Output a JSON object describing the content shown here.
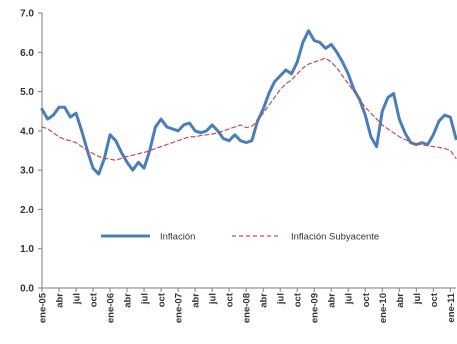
{
  "chart_data": {
    "type": "line",
    "title": "",
    "xlabel": "",
    "ylabel": "",
    "ylim": [
      0,
      7
    ],
    "yticks": [
      "0.0",
      "1.0",
      "2.0",
      "3.0",
      "4.0",
      "5.0",
      "6.0",
      "7.0"
    ],
    "grid": false,
    "legend_position": "center-left",
    "x_tick_labels": [
      "ene-05",
      "abr",
      "jul",
      "oct",
      "ene-06",
      "abr",
      "jul",
      "oct",
      "ene-07",
      "abr",
      "jul",
      "oct",
      "ene-08",
      "abr",
      "jul",
      "oct",
      "ene-09",
      "abr",
      "jul",
      "oct",
      "ene-10",
      "abr",
      "jul",
      "oct",
      "ene-11"
    ],
    "x_tick_months": [
      0,
      3,
      6,
      9,
      12,
      15,
      18,
      21,
      24,
      27,
      30,
      33,
      36,
      39,
      42,
      45,
      48,
      51,
      54,
      57,
      60,
      63,
      66,
      69,
      72
    ],
    "x": [
      0,
      1,
      2,
      3,
      4,
      5,
      6,
      7,
      8,
      9,
      10,
      11,
      12,
      13,
      14,
      15,
      16,
      17,
      18,
      19,
      20,
      21,
      22,
      23,
      24,
      25,
      26,
      27,
      28,
      29,
      30,
      31,
      32,
      33,
      34,
      35,
      36,
      37,
      38,
      39,
      40,
      41,
      42,
      43,
      44,
      45,
      46,
      47,
      48,
      49,
      50,
      51,
      52,
      53,
      54,
      55,
      56,
      57,
      58,
      59,
      60,
      61,
      62,
      63,
      64,
      65,
      66,
      67,
      68,
      69,
      70,
      71,
      72,
      73
    ],
    "series": [
      {
        "name": "Inflación",
        "color": "#4a7ebb",
        "style": "solid",
        "values": [
          4.55,
          4.3,
          4.4,
          4.6,
          4.6,
          4.35,
          4.45,
          4.0,
          3.5,
          3.05,
          2.9,
          3.3,
          3.9,
          3.75,
          3.45,
          3.2,
          3.0,
          3.2,
          3.05,
          3.5,
          4.1,
          4.3,
          4.1,
          4.05,
          4.0,
          4.15,
          4.2,
          4.0,
          3.95,
          4.0,
          4.15,
          4.0,
          3.8,
          3.75,
          3.9,
          3.75,
          3.7,
          3.75,
          4.25,
          4.55,
          4.95,
          5.25,
          5.4,
          5.55,
          5.45,
          5.75,
          6.25,
          6.55,
          6.3,
          6.25,
          6.1,
          6.2,
          6.0,
          5.75,
          5.45,
          5.05,
          4.8,
          4.4,
          3.85,
          3.6,
          4.5,
          4.85,
          4.95,
          4.3,
          3.95,
          3.7,
          3.65,
          3.7,
          3.65,
          3.9,
          4.25,
          4.4,
          4.35,
          3.8
        ]
      },
      {
        "name": "Inflación Subyacente",
        "color": "#c0504d",
        "style": "dashed",
        "values": [
          4.1,
          4.05,
          3.95,
          3.85,
          3.78,
          3.75,
          3.7,
          3.6,
          3.5,
          3.42,
          3.35,
          3.3,
          3.28,
          3.25,
          3.3,
          3.35,
          3.38,
          3.42,
          3.45,
          3.5,
          3.55,
          3.6,
          3.65,
          3.7,
          3.75,
          3.8,
          3.85,
          3.85,
          3.88,
          3.9,
          3.92,
          3.95,
          4.0,
          4.05,
          4.1,
          4.15,
          4.08,
          4.12,
          4.25,
          4.45,
          4.65,
          4.85,
          5.05,
          5.2,
          5.3,
          5.45,
          5.6,
          5.7,
          5.75,
          5.8,
          5.85,
          5.75,
          5.6,
          5.4,
          5.2,
          5.0,
          4.8,
          4.6,
          4.45,
          4.3,
          4.15,
          4.05,
          3.95,
          3.85,
          3.78,
          3.72,
          3.68,
          3.65,
          3.62,
          3.6,
          3.58,
          3.55,
          3.5,
          3.3
        ]
      }
    ]
  }
}
